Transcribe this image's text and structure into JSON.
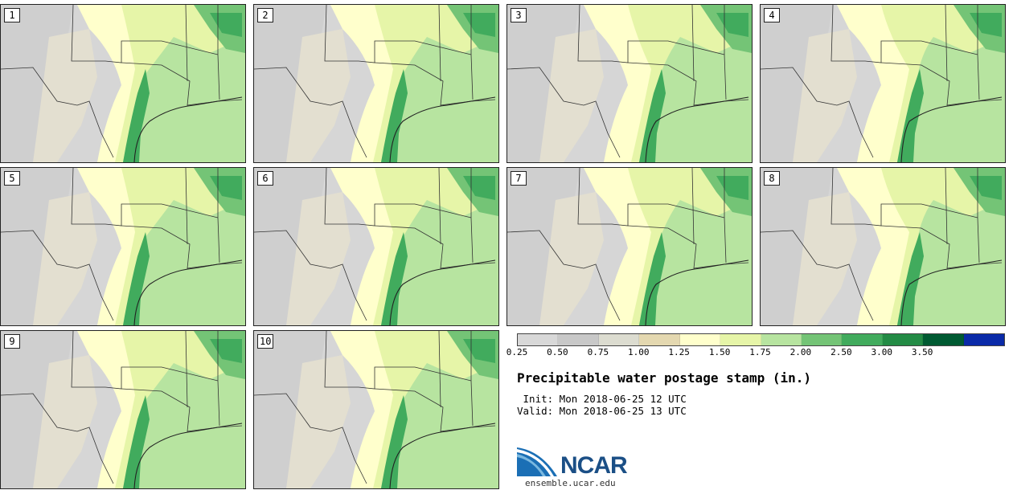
{
  "panels": [
    "1",
    "2",
    "3",
    "4",
    "5",
    "6",
    "7",
    "8",
    "9",
    "10"
  ],
  "colorbar": {
    "colors": [
      "#d8d8d8",
      "#c8c8c8",
      "#dcdcd0",
      "#e4d8b0",
      "#ffffcc",
      "#e6f5a8",
      "#b7e4a0",
      "#74c476",
      "#41ab5d",
      "#238b45",
      "#005a32",
      "#0a2aa8"
    ],
    "ticks": [
      "0.25",
      "0.50",
      "0.75",
      "1.00",
      "1.25",
      "1.50",
      "1.75",
      "2.00",
      "2.50",
      "3.00",
      "3.50"
    ]
  },
  "title": "Precipitable water postage stamp (in.)",
  "init": " Init: Mon 2018-06-25 12 UTC",
  "valid": "Valid: Mon 2018-06-25 13 UTC",
  "logo": {
    "text": "NCAR",
    "url": "ensemble.ucar.edu"
  }
}
